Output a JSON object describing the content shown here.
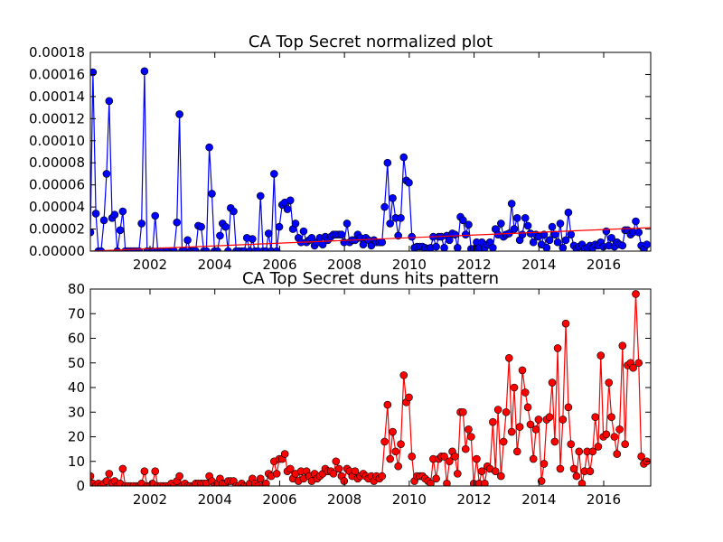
{
  "chart_data": [
    {
      "type": "line",
      "title": "CA Top Secret normalized plot",
      "xlim": [
        2000.16,
        2017.45
      ],
      "xticks": [
        2002,
        2004,
        2006,
        2008,
        2010,
        2012,
        2014,
        2016
      ],
      "ylim": [
        0,
        0.00018
      ],
      "yticks": [
        {
          "value": 0,
          "label": "0.00000"
        },
        {
          "value": 2e-05,
          "label": "0.00002"
        },
        {
          "value": 4e-05,
          "label": "0.00004"
        },
        {
          "value": 6e-05,
          "label": "0.00006"
        },
        {
          "value": 8e-05,
          "label": "0.00008"
        },
        {
          "value": 0.0001,
          "label": "0.00010"
        },
        {
          "value": 0.00012,
          "label": "0.00012"
        },
        {
          "value": 0.00014,
          "label": "0.00014"
        },
        {
          "value": 0.00016,
          "label": "0.00016"
        },
        {
          "value": 0.00018,
          "label": "0.00018"
        }
      ],
      "x": [
        2000.16,
        2000.24,
        2000.33,
        2000.41,
        2000.49,
        2000.58,
        2000.66,
        2000.74,
        2000.83,
        2000.91,
        2000.99,
        2001.08,
        2001.16,
        2001.24,
        2001.33,
        2001.41,
        2001.49,
        2001.58,
        2001.66,
        2001.74,
        2001.83,
        2001.91,
        2001.99,
        2002.08,
        2002.16,
        2002.24,
        2002.33,
        2002.41,
        2002.49,
        2002.58,
        2002.66,
        2002.74,
        2002.83,
        2002.91,
        2002.99,
        2003.08,
        2003.16,
        2003.24,
        2003.33,
        2003.41,
        2003.49,
        2003.58,
        2003.66,
        2003.74,
        2003.83,
        2003.91,
        2003.99,
        2004.08,
        2004.16,
        2004.24,
        2004.33,
        2004.41,
        2004.49,
        2004.58,
        2004.66,
        2004.74,
        2004.83,
        2004.91,
        2004.99,
        2005.08,
        2005.16,
        2005.24,
        2005.33,
        2005.41,
        2005.49,
        2005.58,
        2005.66,
        2005.74,
        2005.83,
        2005.91,
        2005.99,
        2006.08,
        2006.16,
        2006.24,
        2006.33,
        2006.41,
        2006.49,
        2006.58,
        2006.66,
        2006.74,
        2006.83,
        2006.91,
        2006.99,
        2007.08,
        2007.16,
        2007.24,
        2007.33,
        2007.41,
        2007.49,
        2007.58,
        2007.66,
        2007.74,
        2007.83,
        2007.91,
        2007.99,
        2008.08,
        2008.16,
        2008.24,
        2008.33,
        2008.41,
        2008.49,
        2008.58,
        2008.66,
        2008.74,
        2008.83,
        2008.91,
        2008.99,
        2009.08,
        2009.16,
        2009.24,
        2009.33,
        2009.41,
        2009.49,
        2009.58,
        2009.66,
        2009.74,
        2009.83,
        2009.91,
        2009.99,
        2010.08,
        2010.16,
        2010.24,
        2010.33,
        2010.41,
        2010.49,
        2010.58,
        2010.66,
        2010.74,
        2010.83,
        2010.91,
        2010.99,
        2011.08,
        2011.16,
        2011.24,
        2011.33,
        2011.41,
        2011.49,
        2011.58,
        2011.66,
        2011.74,
        2011.83,
        2011.91,
        2011.99,
        2012.08,
        2012.16,
        2012.24,
        2012.33,
        2012.41,
        2012.49,
        2012.58,
        2012.66,
        2012.74,
        2012.83,
        2012.91,
        2012.99,
        2013.08,
        2013.16,
        2013.24,
        2013.33,
        2013.41,
        2013.49,
        2013.58,
        2013.66,
        2013.74,
        2013.83,
        2013.91,
        2013.99,
        2014.08,
        2014.16,
        2014.24,
        2014.33,
        2014.41,
        2014.49,
        2014.58,
        2014.66,
        2014.74,
        2014.83,
        2014.91,
        2014.99,
        2015.08,
        2015.16,
        2015.24,
        2015.33,
        2015.41,
        2015.49,
        2015.58,
        2015.66,
        2015.74,
        2015.83,
        2015.91,
        2015.99,
        2016.08,
        2016.16,
        2016.24,
        2016.33,
        2016.41,
        2016.49,
        2016.58,
        2016.66,
        2016.74,
        2016.83,
        2016.91,
        2016.99,
        2017.08,
        2017.16,
        2017.24,
        2017.33
      ],
      "series": [
        {
          "color": "#0000ff",
          "marker": true,
          "values": [
            1.7e-05,
            0.000162,
            3.4e-05,
            0,
            0,
            2.8e-05,
            7e-05,
            0.000136,
            3e-05,
            3.3e-05,
            0,
            1.9e-05,
            3.6e-05,
            0,
            0,
            0,
            0,
            0,
            0,
            2.5e-05,
            0.000163,
            0,
            0,
            0,
            3.2e-05,
            0,
            0,
            0,
            0,
            0,
            0,
            0,
            2.6e-05,
            0.000124,
            0,
            0,
            1e-05,
            0,
            0,
            0,
            2.3e-05,
            2.2e-05,
            0,
            0,
            9.4e-05,
            5.2e-05,
            0,
            0,
            1.4e-05,
            2.5e-05,
            2.2e-05,
            0,
            3.9e-05,
            3.6e-05,
            0,
            0,
            0,
            0,
            1.2e-05,
            0,
            1.1e-05,
            0,
            0,
            5e-05,
            0,
            0,
            1.6e-05,
            0,
            7e-05,
            0,
            2.2e-05,
            4.2e-05,
            4.4e-05,
            3.8e-05,
            4.6e-05,
            2e-05,
            2.5e-05,
            1.2e-05,
            8e-06,
            1.8e-05,
            8e-06,
            1e-05,
            1.2e-05,
            5e-06,
            8e-06,
            1.2e-05,
            6e-06,
            1.3e-05,
            1e-05,
            1.3e-05,
            1.5e-05,
            1.5e-05,
            1.5e-05,
            1.5e-05,
            8e-06,
            2.5e-05,
            8e-06,
            1e-05,
            1e-05,
            1.5e-05,
            1.2e-05,
            6e-06,
            1.2e-05,
            1e-05,
            5e-06,
            1e-05,
            8e-06,
            8e-06,
            8e-06,
            4e-05,
            8e-05,
            2.5e-05,
            4.8e-05,
            3e-05,
            1.4e-05,
            3e-05,
            8.5e-05,
            6.4e-05,
            6.2e-05,
            1.3e-05,
            3e-06,
            4e-06,
            4e-06,
            4e-06,
            3e-06,
            2e-06,
            3e-06,
            1.3e-05,
            4e-06,
            1.3e-05,
            1.3e-05,
            3e-06,
            1.4e-05,
            1e-05,
            1.6e-05,
            1.5e-05,
            3e-06,
            3.1e-05,
            2.8e-05,
            1.5e-05,
            2.4e-05,
            2e-06,
            2e-06,
            8e-06,
            3e-06,
            8e-06,
            3e-06,
            6e-06,
            8e-06,
            3e-06,
            2e-05,
            1.5e-05,
            2.5e-05,
            1.3e-05,
            1.5e-05,
            1.6e-05,
            4.3e-05,
            2e-05,
            3e-05,
            1e-05,
            1.5e-05,
            3e-05,
            2.3e-05,
            1.6e-05,
            8e-06,
            1.5e-05,
            1.3e-05,
            6e-06,
            1.5e-05,
            3e-06,
            1e-05,
            2.2e-05,
            1.5e-05,
            8e-06,
            2.5e-05,
            3e-06,
            1e-05,
            3.5e-05,
            1.5e-05,
            5e-06,
            2e-06,
            4e-06,
            6e-06,
            2e-06,
            3e-06,
            5e-06,
            3e-06,
            6e-06,
            5e-06,
            8e-06,
            4e-06,
            1.8e-05,
            5e-06,
            1.2e-05,
            4e-06,
            8e-06,
            6e-06,
            5e-06,
            1.9e-05,
            1.9e-05,
            1.5e-05,
            1.7e-05,
            2.7e-05,
            1.7e-05,
            5e-06,
            2e-06,
            6e-06
          ]
        },
        {
          "color": "#ff0000",
          "marker": false,
          "x": [
            2000.16,
            2017.45
          ],
          "values": [
            0,
            2.13e-05
          ]
        }
      ]
    },
    {
      "type": "line",
      "title": "CA Top Secret duns hits pattern",
      "xlim": [
        2000.16,
        2017.45
      ],
      "xticks": [
        2002,
        2004,
        2006,
        2008,
        2010,
        2012,
        2014,
        2016
      ],
      "ylim": [
        0,
        80
      ],
      "yticks": [
        0,
        10,
        20,
        30,
        40,
        50,
        60,
        70,
        80
      ],
      "x": [
        2000.16,
        2000.24,
        2000.33,
        2000.41,
        2000.49,
        2000.58,
        2000.66,
        2000.74,
        2000.83,
        2000.91,
        2000.99,
        2001.08,
        2001.16,
        2001.24,
        2001.33,
        2001.41,
        2001.49,
        2001.58,
        2001.66,
        2001.74,
        2001.83,
        2001.91,
        2001.99,
        2002.08,
        2002.16,
        2002.24,
        2002.33,
        2002.41,
        2002.49,
        2002.58,
        2002.66,
        2002.74,
        2002.83,
        2002.91,
        2002.99,
        2003.08,
        2003.16,
        2003.24,
        2003.33,
        2003.41,
        2003.49,
        2003.58,
        2003.66,
        2003.74,
        2003.83,
        2003.91,
        2003.99,
        2004.08,
        2004.16,
        2004.24,
        2004.33,
        2004.41,
        2004.49,
        2004.58,
        2004.66,
        2004.74,
        2004.83,
        2004.91,
        2004.99,
        2005.08,
        2005.16,
        2005.24,
        2005.33,
        2005.41,
        2005.49,
        2005.58,
        2005.66,
        2005.74,
        2005.83,
        2005.91,
        2005.99,
        2006.08,
        2006.16,
        2006.24,
        2006.33,
        2006.41,
        2006.49,
        2006.58,
        2006.66,
        2006.74,
        2006.83,
        2006.91,
        2006.99,
        2007.08,
        2007.16,
        2007.24,
        2007.33,
        2007.41,
        2007.49,
        2007.58,
        2007.66,
        2007.74,
        2007.83,
        2007.91,
        2007.99,
        2008.08,
        2008.16,
        2008.24,
        2008.33,
        2008.41,
        2008.49,
        2008.58,
        2008.66,
        2008.74,
        2008.83,
        2008.91,
        2008.99,
        2009.08,
        2009.16,
        2009.24,
        2009.33,
        2009.41,
        2009.49,
        2009.58,
        2009.66,
        2009.74,
        2009.83,
        2009.91,
        2009.99,
        2010.08,
        2010.16,
        2010.24,
        2010.33,
        2010.41,
        2010.49,
        2010.58,
        2010.66,
        2010.74,
        2010.83,
        2010.91,
        2010.99,
        2011.08,
        2011.16,
        2011.24,
        2011.33,
        2011.41,
        2011.49,
        2011.58,
        2011.66,
        2011.74,
        2011.83,
        2011.91,
        2011.99,
        2012.08,
        2012.16,
        2012.24,
        2012.33,
        2012.41,
        2012.49,
        2012.58,
        2012.66,
        2012.74,
        2012.83,
        2012.91,
        2012.99,
        2013.08,
        2013.16,
        2013.24,
        2013.33,
        2013.41,
        2013.49,
        2013.58,
        2013.66,
        2013.74,
        2013.83,
        2013.91,
        2013.99,
        2014.08,
        2014.16,
        2014.24,
        2014.33,
        2014.41,
        2014.49,
        2014.58,
        2014.66,
        2014.74,
        2014.83,
        2014.91,
        2014.99,
        2015.08,
        2015.16,
        2015.24,
        2015.33,
        2015.41,
        2015.49,
        2015.58,
        2015.66,
        2015.74,
        2015.83,
        2015.91,
        2015.99,
        2016.08,
        2016.16,
        2016.24,
        2016.33,
        2016.41,
        2016.49,
        2016.58,
        2016.66,
        2016.74,
        2016.83,
        2016.91,
        2016.99,
        2017.08,
        2017.16,
        2017.24,
        2017.33
      ],
      "series": [
        {
          "color": "#ff0000",
          "marker": true,
          "values": [
            4,
            1,
            0,
            1,
            0,
            1,
            2,
            5,
            1,
            2,
            0,
            1,
            7,
            0,
            0,
            0,
            0,
            0,
            0,
            1,
            6,
            0,
            0,
            1,
            6,
            0,
            0,
            0,
            0,
            0,
            1,
            0,
            2,
            4,
            0,
            1,
            0,
            0,
            0,
            1,
            1,
            1,
            1,
            1,
            4,
            2,
            0,
            1,
            3,
            1,
            1,
            2,
            2,
            2,
            0,
            0,
            1,
            0,
            0,
            1,
            3,
            1,
            0,
            3,
            0,
            1,
            5,
            4,
            10,
            5,
            11,
            11,
            13,
            6,
            7,
            3,
            5,
            2,
            6,
            3,
            6,
            4,
            2,
            5,
            3,
            4,
            5,
            7,
            6,
            6,
            5,
            10,
            7,
            4,
            2,
            7,
            6,
            4,
            6,
            3,
            4,
            5,
            4,
            3,
            4,
            2,
            4,
            3,
            4,
            18,
            33,
            11,
            22,
            14,
            8,
            17,
            45,
            34,
            36,
            12,
            2,
            4,
            4,
            4,
            3,
            2,
            1,
            11,
            3,
            11,
            12,
            12,
            1,
            10,
            14,
            12,
            5,
            30,
            30,
            15,
            23,
            20,
            1,
            11,
            1,
            6,
            1,
            8,
            7,
            26,
            6,
            31,
            4,
            18,
            30,
            52,
            22,
            40,
            14,
            24,
            47,
            38,
            32,
            25,
            11,
            23,
            27,
            2,
            9,
            27,
            28,
            42,
            18,
            56,
            7,
            27,
            66,
            32,
            17,
            7,
            4,
            14,
            1,
            6,
            14,
            6,
            14,
            28,
            16,
            53,
            20,
            21,
            42,
            28,
            20,
            13,
            23,
            57,
            17,
            49,
            50,
            48,
            78,
            50,
            12,
            9,
            10
          ]
        }
      ]
    }
  ]
}
